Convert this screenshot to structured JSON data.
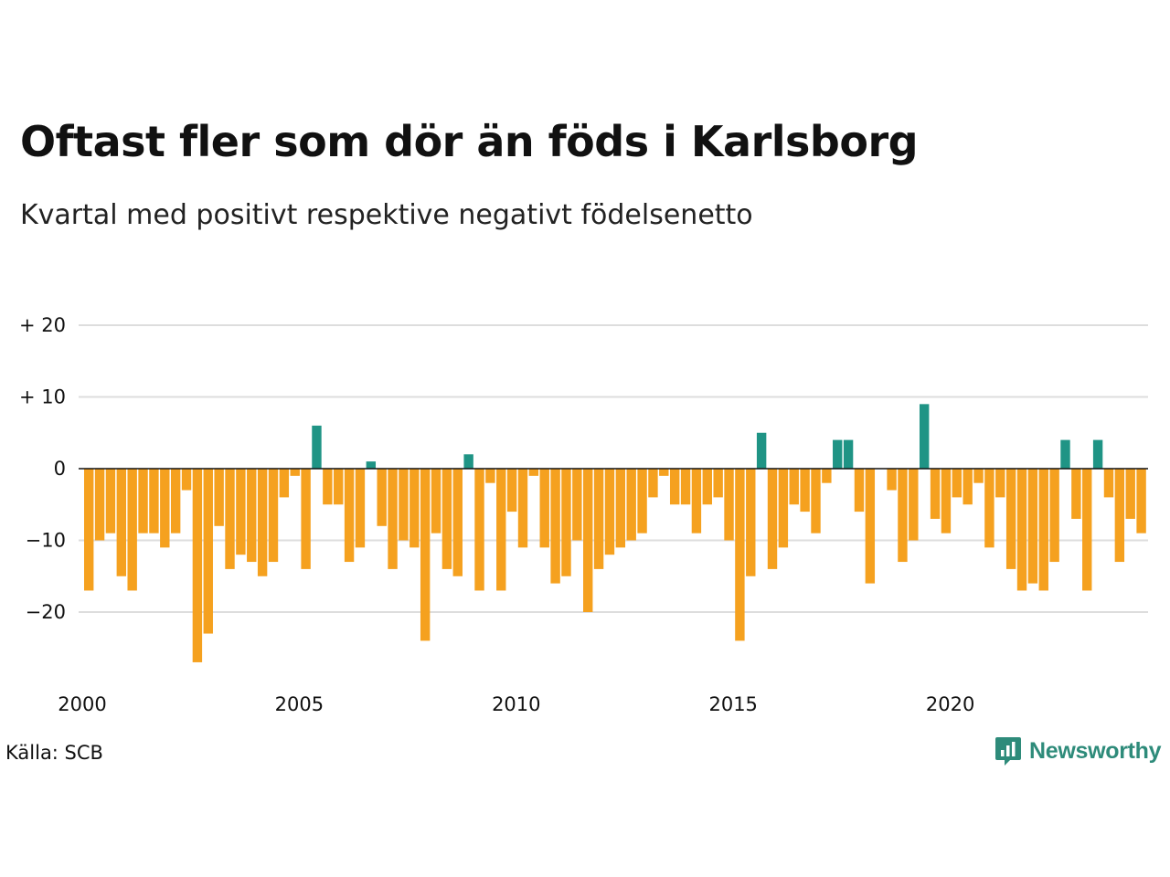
{
  "title": "Oftast fler som dör än föds i Karlsborg",
  "subtitle": "Kvartal med positivt respektive negativt födelsenetto",
  "source": "Källa: SCB",
  "brand": {
    "name": "Newsworthy",
    "icon": "newsworthy-chat-bar-icon",
    "color": "#2e8b7a"
  },
  "colors": {
    "positive": "#1f9485",
    "negative": "#f5a11f",
    "grid": "#dddddd",
    "zero_line": "#111111"
  },
  "chart_data": {
    "type": "bar",
    "title": "Oftast fler som dör än föds i Karlsborg",
    "subtitle": "Kvartal med positivt respektive negativt födelsenetto",
    "xlabel": "",
    "ylabel": "",
    "start_period": "2000 Q1",
    "ylim": [
      -29,
      22
    ],
    "xlim": [
      2000,
      2024.75
    ],
    "grid": true,
    "y_ticks": [
      {
        "value": 20,
        "label": "+ 20"
      },
      {
        "value": 10,
        "label": "+ 10"
      },
      {
        "value": 0,
        "label": "0"
      },
      {
        "value": -10,
        "label": "−10"
      },
      {
        "value": -20,
        "label": "−20"
      }
    ],
    "x_ticks": [
      {
        "value": 2000,
        "label": "2000"
      },
      {
        "value": 2005,
        "label": "2005"
      },
      {
        "value": 2010,
        "label": "2010"
      },
      {
        "value": 2015,
        "label": "2015"
      },
      {
        "value": 2020,
        "label": "2020"
      }
    ],
    "values": [
      -17,
      -10,
      -9,
      -15,
      -17,
      -9,
      -9,
      -11,
      -9,
      -3,
      -27,
      -23,
      -8,
      -14,
      -12,
      -13,
      -15,
      -13,
      -4,
      -1,
      -14,
      6,
      -5,
      -5,
      -13,
      -11,
      1,
      -8,
      -14,
      -10,
      -11,
      -24,
      -9,
      -14,
      -15,
      2,
      -17,
      -2,
      -17,
      -6,
      -11,
      -1,
      -11,
      -16,
      -15,
      -10,
      -20,
      -14,
      -12,
      -11,
      -10,
      -9,
      -4,
      -1,
      -5,
      -5,
      -9,
      -5,
      -4,
      -10,
      -24,
      -15,
      5,
      -14,
      -11,
      -5,
      -6,
      -9,
      -2,
      4,
      4,
      -6,
      -16,
      0,
      -3,
      -13,
      -10,
      9,
      -7,
      -9,
      -4,
      -5,
      -2,
      -11,
      -4,
      -14,
      -17,
      -16,
      -17,
      -13,
      4,
      -7,
      -17,
      4,
      -4,
      -13,
      -7,
      -9
    ]
  }
}
